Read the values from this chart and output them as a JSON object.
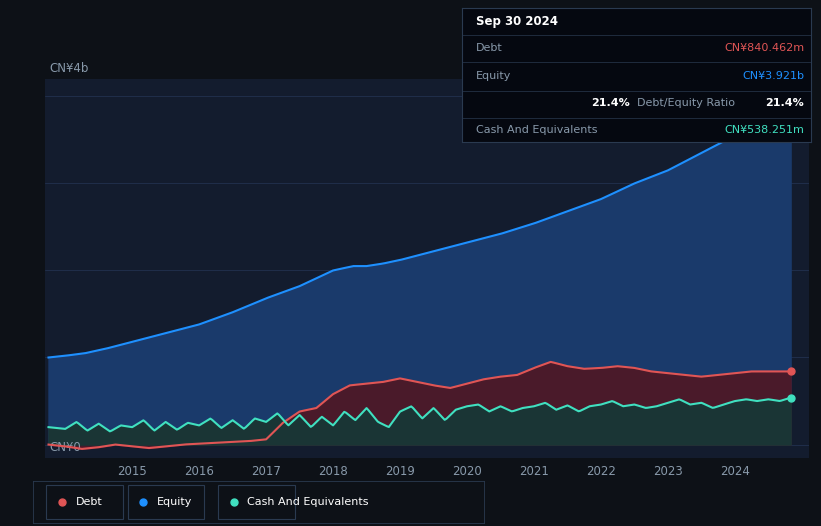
{
  "bg_color": "#0d1117",
  "plot_bg_color": "#131c2e",
  "title_box_date": "Sep 30 2024",
  "tooltip": {
    "debt_label": "Debt",
    "debt_value": "CN¥840.462m",
    "equity_label": "Equity",
    "equity_value": "CN¥3.921b",
    "ratio_value": "21.4%",
    "ratio_label": "Debt/Equity Ratio",
    "cash_label": "Cash And Equivalents",
    "cash_value": "CN¥538.251m"
  },
  "y_label_top": "CN¥4b",
  "y_label_bottom": "CN¥0",
  "equity_color": "#1e90ff",
  "debt_color": "#e05555",
  "cash_color": "#40e0c0",
  "equity_fill_color": "#1a3a6b",
  "debt_fill_color": "#4a1a2a",
  "cash_fill_color": "#1a3535",
  "legend_items": [
    "Debt",
    "Equity",
    "Cash And Equivalents"
  ],
  "legend_colors": [
    "#e05555",
    "#1e90ff",
    "#40e0c0"
  ],
  "ylim": [
    -150000000.0,
    4200000000.0
  ],
  "xlim": [
    2013.7,
    2025.1
  ]
}
